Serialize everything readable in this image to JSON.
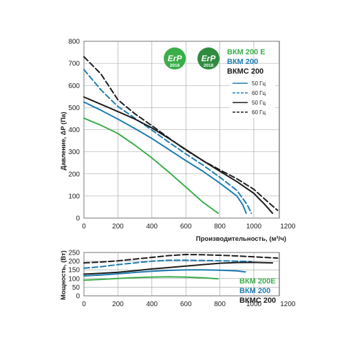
{
  "colors": {
    "green": "#3aae4a",
    "blue": "#1a7bb0",
    "black": "#1a1a1a",
    "grid": "#9a9a9a"
  },
  "badges": [
    {
      "text": "ErP",
      "year": "2016",
      "color": "#3aae4a"
    },
    {
      "text": "ErP",
      "year": "2018",
      "color": "#2e8b3f"
    }
  ],
  "models": [
    {
      "label": "ВКМ 200 E",
      "color": "#3aae4a"
    },
    {
      "label": "ВКМ 200",
      "color": "#1a7bb0"
    },
    {
      "label": "ВКМС 200",
      "color": "#1a1a1a"
    }
  ],
  "legend": [
    {
      "label": "50 Гц",
      "color": "#1a7bb0",
      "dashed": false
    },
    {
      "label": "60 Гц",
      "color": "#1a7bb0",
      "dashed": true
    },
    {
      "label": "50 Гц",
      "color": "#1a1a1a",
      "dashed": false
    },
    {
      "label": "60 Гц",
      "color": "#1a1a1a",
      "dashed": true
    }
  ],
  "power_models": [
    {
      "label": "ВКМ 200E",
      "color": "#3aae4a"
    },
    {
      "label": "ВКМ 200",
      "color": "#1a7bb0"
    },
    {
      "label": "ВКМС 200",
      "color": "#1a1a1a"
    }
  ],
  "chart_data": [
    {
      "type": "line",
      "xlabel": "Производительность, (м³/ч)",
      "ylabel": "Давление, ΔP (Па)",
      "xlim": [
        0,
        1150
      ],
      "ylim": [
        0,
        800
      ],
      "xticks": [
        "0",
        "200",
        "400",
        "600",
        "800",
        "1000",
        "1200"
      ],
      "yticks": [
        "0",
        "100",
        "200",
        "300",
        "400",
        "500",
        "600",
        "700",
        "800"
      ],
      "grid": true,
      "series": [
        {
          "name": "ВКМ 200 E",
          "color": "#3aae4a",
          "dashed": false,
          "points": [
            [
              0,
              452
            ],
            [
              100,
              420
            ],
            [
              200,
              383
            ],
            [
              300,
              330
            ],
            [
              400,
              272
            ],
            [
              500,
              208
            ],
            [
              600,
              140
            ],
            [
              700,
              72
            ],
            [
              790,
              22
            ]
          ]
        },
        {
          "name": "ВКМ 200 50 Гц",
          "color": "#1a7bb0",
          "dashed": false,
          "points": [
            [
              0,
              525
            ],
            [
              100,
              488
            ],
            [
              200,
              448
            ],
            [
              300,
              405
            ],
            [
              400,
              360
            ],
            [
              500,
              310
            ],
            [
              600,
              260
            ],
            [
              700,
              212
            ],
            [
              800,
              158
            ],
            [
              900,
              100
            ],
            [
              935,
              60
            ],
            [
              955,
              22
            ]
          ]
        },
        {
          "name": "ВКМ 200 60 Гц",
          "color": "#1a7bb0",
          "dashed": true,
          "points": [
            [
              0,
              672
            ],
            [
              100,
              580
            ],
            [
              200,
              505
            ],
            [
              300,
              452
            ],
            [
              400,
              398
            ],
            [
              500,
              343
            ],
            [
              600,
              290
            ],
            [
              700,
              240
            ],
            [
              800,
              185
            ],
            [
              900,
              125
            ],
            [
              960,
              62
            ],
            [
              985,
              22
            ]
          ]
        },
        {
          "name": "ВКМС 200 50 Гц",
          "color": "#1a1a1a",
          "dashed": false,
          "points": [
            [
              0,
              548
            ],
            [
              100,
              515
            ],
            [
              200,
              482
            ],
            [
              300,
              448
            ],
            [
              400,
              408
            ],
            [
              500,
              360
            ],
            [
              600,
              310
            ],
            [
              700,
              260
            ],
            [
              800,
              212
            ],
            [
              900,
              165
            ],
            [
              1000,
              112
            ],
            [
              1060,
              65
            ],
            [
              1110,
              22
            ]
          ]
        },
        {
          "name": "ВКМС 200 60 Гц",
          "color": "#1a1a1a",
          "dashed": true,
          "points": [
            [
              0,
              730
            ],
            [
              100,
              652
            ],
            [
              200,
              535
            ],
            [
              300,
              472
            ],
            [
              400,
              418
            ],
            [
              500,
              362
            ],
            [
              600,
              308
            ],
            [
              700,
              260
            ],
            [
              800,
              218
            ],
            [
              900,
              178
            ],
            [
              1000,
              130
            ],
            [
              1080,
              75
            ],
            [
              1140,
              35
            ]
          ]
        }
      ]
    },
    {
      "type": "line",
      "ylabel": "Мощность, (Вт)",
      "xlim": [
        0,
        1150
      ],
      "ylim": [
        0,
        250
      ],
      "xticks": [
        "0",
        "200",
        "400",
        "600",
        "800",
        "1000",
        "1200"
      ],
      "yticks": [
        "0",
        "50",
        "100",
        "150",
        "200",
        "250"
      ],
      "grid": true,
      "series": [
        {
          "name": "ВКМ 200E",
          "color": "#3aae4a",
          "dashed": false,
          "points": [
            [
              0,
              90
            ],
            [
              100,
              95
            ],
            [
              200,
              100
            ],
            [
              300,
              105
            ],
            [
              400,
              108
            ],
            [
              500,
              110
            ],
            [
              600,
              108
            ],
            [
              700,
              104
            ],
            [
              790,
              98
            ]
          ]
        },
        {
          "name": "ВКМ 200 50 Гц",
          "color": "#1a7bb0",
          "dashed": false,
          "points": [
            [
              0,
              115
            ],
            [
              100,
              120
            ],
            [
              200,
              127
            ],
            [
              300,
              135
            ],
            [
              400,
              142
            ],
            [
              500,
              147
            ],
            [
              600,
              150
            ],
            [
              700,
              150
            ],
            [
              800,
              148
            ],
            [
              900,
              144
            ],
            [
              950,
              138
            ]
          ]
        },
        {
          "name": "ВКМ 200 60 Гц",
          "color": "#1a7bb0",
          "dashed": true,
          "points": [
            [
              0,
              160
            ],
            [
              100,
              168
            ],
            [
              200,
              180
            ],
            [
              300,
              190
            ],
            [
              400,
              200
            ],
            [
              500,
              205
            ],
            [
              600,
              205
            ],
            [
              700,
              204
            ],
            [
              800,
              202
            ],
            [
              900,
              200
            ],
            [
              985,
              198
            ]
          ]
        },
        {
          "name": "ВКМС 200 50 Гц",
          "color": "#1a1a1a",
          "dashed": false,
          "points": [
            [
              0,
              125
            ],
            [
              100,
              130
            ],
            [
              200,
              136
            ],
            [
              300,
              145
            ],
            [
              400,
              155
            ],
            [
              500,
              163
            ],
            [
              600,
              172
            ],
            [
              700,
              180
            ],
            [
              800,
              188
            ],
            [
              900,
              192
            ],
            [
              1000,
              193
            ],
            [
              1110,
              190
            ]
          ]
        },
        {
          "name": "ВКМС 200 60 Гц",
          "color": "#1a1a1a",
          "dashed": true,
          "points": [
            [
              0,
              190
            ],
            [
              100,
              195
            ],
            [
              200,
              202
            ],
            [
              300,
              212
            ],
            [
              400,
              222
            ],
            [
              500,
              232
            ],
            [
              600,
              238
            ],
            [
              700,
              237
            ],
            [
              800,
              234
            ],
            [
              900,
              230
            ],
            [
              1000,
              225
            ],
            [
              1140,
              218
            ]
          ]
        }
      ]
    }
  ]
}
